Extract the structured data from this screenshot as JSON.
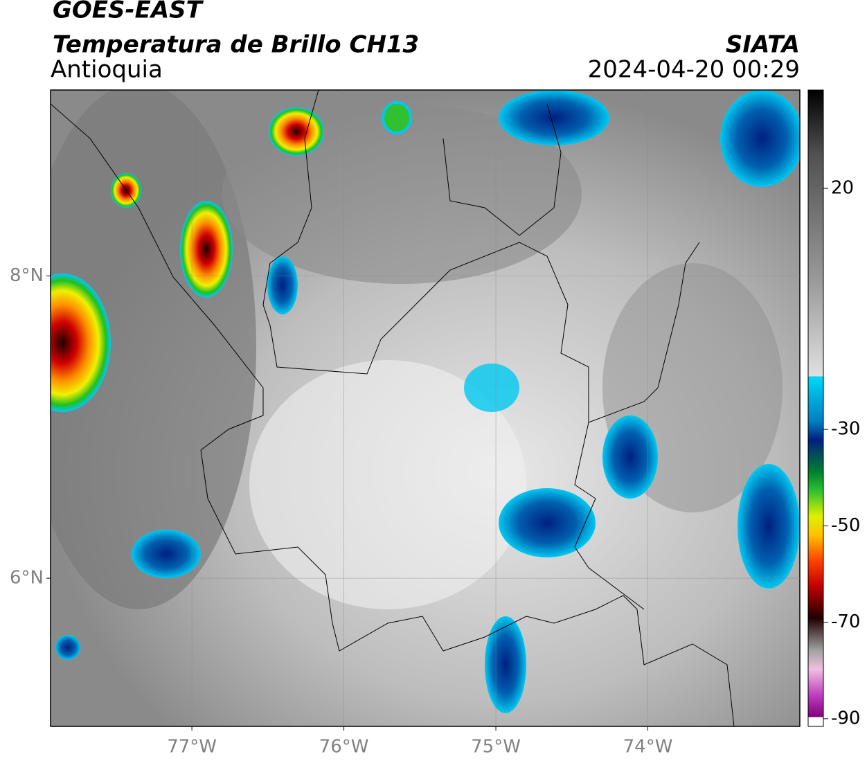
{
  "header": {
    "title": "GOES-EAST",
    "subtitle": "Temperatura de Brillo CH13",
    "region": "Antioquia",
    "source": "SIATA",
    "datetime": "2024-04-20 00:29"
  },
  "map": {
    "xlim": [
      -77.93,
      -73.0
    ],
    "ylim": [
      5.02,
      9.23
    ],
    "xticks": [
      {
        "value": -77,
        "label": "77°W"
      },
      {
        "value": -76,
        "label": "76°W"
      },
      {
        "value": -75,
        "label": "75°W"
      },
      {
        "value": -74,
        "label": "74°W"
      }
    ],
    "yticks": [
      {
        "value": 6,
        "label": "6°N"
      },
      {
        "value": 8,
        "label": "8°N"
      }
    ],
    "grid": true
  },
  "colorbar": {
    "lim": [
      -91.6,
      40.4
    ],
    "ticks": [
      20,
      -30,
      -50,
      -70,
      -90
    ]
  }
}
